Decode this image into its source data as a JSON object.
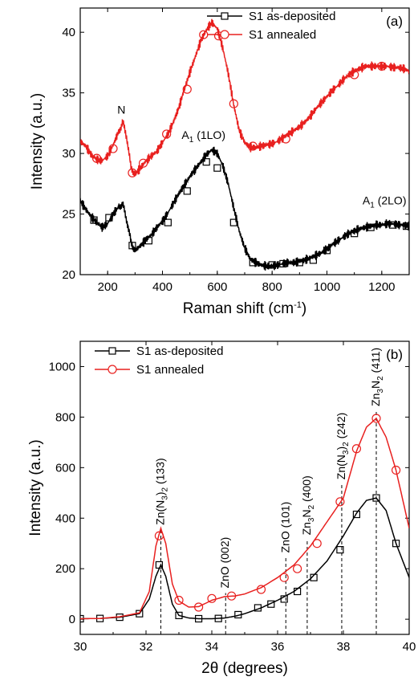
{
  "chart_data": [
    {
      "type": "line",
      "panel_label": "(a)",
      "xlabel_main": "Raman shift (cm",
      "xlabel_sup": "-1",
      "xlabel_tail": ")",
      "ylabel": "Intensity (a.u.)",
      "xlim": [
        100,
        1300
      ],
      "ylim": [
        20,
        42
      ],
      "xticks": [
        200,
        400,
        600,
        800,
        1000,
        1200
      ],
      "yticks": [
        20,
        25,
        30,
        35,
        40
      ],
      "legend_position": "top-center",
      "annotations": [
        {
          "text": "N",
          "x": 250,
          "y": 33.3
        },
        {
          "main": "A",
          "sub": "1",
          "rest": " (1LO)",
          "x": 470,
          "y": 31.2
        },
        {
          "main": "A",
          "sub": "1",
          "rest": " (2LO)",
          "x": 1130,
          "y": 25.8
        }
      ],
      "series": [
        {
          "name": "S1 as-deposited",
          "color": "#000000",
          "marker": "square",
          "x": [
            100,
            120,
            140,
            160,
            180,
            200,
            220,
            240,
            255,
            270,
            285,
            300,
            320,
            340,
            360,
            380,
            400,
            420,
            440,
            460,
            480,
            500,
            520,
            540,
            560,
            580,
            600,
            620,
            640,
            660,
            680,
            700,
            720,
            740,
            760,
            780,
            800,
            820,
            840,
            860,
            880,
            900,
            920,
            940,
            960,
            980,
            1000,
            1020,
            1040,
            1060,
            1080,
            1100,
            1120,
            1140,
            1160,
            1180,
            1200,
            1220,
            1240,
            1260,
            1280,
            1300
          ],
          "y": [
            26.1,
            25.4,
            24.8,
            24.3,
            23.9,
            24.2,
            25.0,
            25.6,
            25.8,
            24.5,
            22.7,
            22.0,
            22.4,
            22.9,
            23.3,
            23.9,
            24.4,
            25.1,
            25.9,
            26.7,
            27.4,
            28.1,
            28.7,
            29.3,
            29.9,
            30.3,
            30.0,
            29.0,
            27.5,
            25.5,
            23.6,
            22.2,
            21.3,
            21.0,
            20.8,
            20.7,
            20.7,
            20.8,
            20.9,
            21.0,
            21.0,
            21.1,
            21.2,
            21.4,
            21.6,
            21.8,
            22.1,
            22.5,
            22.8,
            23.1,
            23.4,
            23.6,
            23.8,
            23.9,
            24.0,
            24.1,
            24.1,
            24.2,
            24.2,
            24.1,
            24.1,
            24.0
          ],
          "markers_x": [
            150,
            205,
            290,
            350,
            420,
            490,
            560,
            600,
            660,
            730,
            800,
            840,
            900,
            950,
            1000,
            1100,
            1160,
            1240,
            1290
          ],
          "markers_y": [
            24.5,
            24.7,
            22.4,
            22.8,
            24.3,
            26.9,
            29.3,
            28.8,
            24.3,
            21.0,
            20.8,
            20.9,
            21.0,
            21.2,
            22.0,
            23.4,
            23.9,
            24.1,
            24.0
          ]
        },
        {
          "name": "S1 annealed",
          "color": "#e8201f",
          "marker": "circle",
          "x": [
            100,
            120,
            140,
            160,
            180,
            200,
            220,
            240,
            255,
            270,
            285,
            300,
            320,
            340,
            360,
            380,
            400,
            420,
            440,
            460,
            480,
            500,
            520,
            540,
            560,
            580,
            600,
            620,
            640,
            660,
            680,
            700,
            720,
            740,
            760,
            780,
            800,
            820,
            840,
            860,
            880,
            900,
            920,
            940,
            960,
            980,
            1000,
            1020,
            1040,
            1060,
            1080,
            1100,
            1120,
            1140,
            1160,
            1180,
            1200,
            1220,
            1240,
            1260,
            1280,
            1300
          ],
          "y": [
            31.0,
            30.6,
            29.9,
            29.5,
            29.4,
            29.8,
            30.7,
            31.8,
            32.6,
            31.3,
            28.8,
            28.3,
            28.8,
            29.4,
            29.8,
            30.2,
            30.9,
            31.6,
            32.6,
            33.8,
            35.3,
            36.7,
            38.0,
            39.3,
            40.2,
            40.8,
            40.3,
            38.7,
            36.6,
            34.0,
            31.9,
            30.9,
            30.5,
            30.5,
            30.6,
            30.7,
            30.8,
            31.0,
            31.3,
            31.6,
            31.9,
            32.2,
            32.6,
            33.1,
            33.7,
            34.2,
            34.7,
            35.2,
            35.6,
            36.1,
            36.5,
            36.8,
            37.0,
            37.2,
            37.2,
            37.2,
            37.2,
            37.2,
            37.1,
            37.1,
            37.0,
            36.8
          ],
          "markers_x": [
            160,
            220,
            290,
            330,
            415,
            490,
            550,
            605,
            660,
            730,
            850,
            1100,
            1200
          ],
          "markers_y": [
            29.6,
            30.4,
            28.4,
            29.2,
            31.6,
            35.3,
            39.8,
            39.7,
            34.1,
            30.6,
            31.2,
            36.5,
            37.2
          ]
        }
      ]
    },
    {
      "type": "line",
      "panel_label": "(b)",
      "xlabel": "2θ (degrees)",
      "ylabel": "Intensity (a.u.)",
      "xlim": [
        30,
        40
      ],
      "ylim": [
        -60,
        1100
      ],
      "xticks": [
        30,
        32,
        34,
        36,
        38,
        40
      ],
      "yticks": [
        0,
        200,
        400,
        600,
        800,
        1000
      ],
      "legend_position": "top-left",
      "reference_lines_x": [
        32.45,
        34.42,
        36.25,
        36.9,
        37.95,
        39.0
      ],
      "annotations": [
        {
          "parts": [
            [
              "Zn(N",
              ""
            ],
            [
              "3",
              "sub"
            ],
            [
              ")",
              ""
            ],
            [
              "2",
              "sub"
            ],
            [
              " (133)",
              ""
            ]
          ],
          "x": 32.45,
          "y": 360
        },
        {
          "parts": [
            [
              "ZnO (002)",
              ""
            ]
          ],
          "x": 34.42,
          "y": 110
        },
        {
          "parts": [
            [
              "ZnO (101)",
              ""
            ]
          ],
          "x": 36.25,
          "y": 250
        },
        {
          "parts": [
            [
              "Zn",
              ""
            ],
            [
              "3",
              "sub"
            ],
            [
              "N",
              ""
            ],
            [
              "2",
              "sub"
            ],
            [
              " (400)",
              ""
            ]
          ],
          "x": 36.9,
          "y": 320
        },
        {
          "parts": [
            [
              "Zn(N",
              ""
            ],
            [
              "3",
              "sub"
            ],
            [
              ")",
              ""
            ],
            [
              "2",
              "sub"
            ],
            [
              " (242)",
              ""
            ]
          ],
          "x": 37.95,
          "y": 540
        },
        {
          "parts": [
            [
              "Zn",
              ""
            ],
            [
              "3",
              "sub"
            ],
            [
              "N",
              ""
            ],
            [
              "2",
              "sub"
            ],
            [
              " (411)",
              ""
            ]
          ],
          "x": 39.0,
          "y": 830
        }
      ],
      "series": [
        {
          "name": "S1 as-deposited",
          "color": "#000000",
          "marker": "square",
          "x": [
            30,
            30.6,
            31.2,
            31.8,
            32.1,
            32.3,
            32.45,
            32.6,
            32.8,
            33.0,
            33.3,
            33.6,
            34.0,
            34.4,
            34.7,
            35.0,
            35.5,
            36.0,
            36.5,
            37.0,
            37.5,
            38.0,
            38.4,
            38.7,
            39.0,
            39.3,
            39.6,
            40.0
          ],
          "y": [
            2,
            3,
            8,
            22,
            80,
            170,
            215,
            170,
            60,
            15,
            5,
            2,
            2,
            5,
            12,
            22,
            45,
            75,
            110,
            160,
            230,
            330,
            420,
            470,
            480,
            430,
            300,
            165
          ],
          "markers_x": [
            30,
            30.6,
            31.2,
            31.8,
            32.4,
            33.0,
            33.6,
            34.2,
            34.8,
            35.4,
            35.8,
            36.2,
            36.6,
            37.1,
            37.9,
            38.4,
            39.0,
            39.6
          ],
          "markers_y": [
            2,
            3,
            8,
            22,
            215,
            15,
            2,
            3,
            18,
            45,
            60,
            80,
            110,
            165,
            275,
            415,
            480,
            300
          ]
        },
        {
          "name": "S1 annealed",
          "color": "#e8201f",
          "marker": "circle",
          "x": [
            30,
            30.6,
            31.2,
            31.8,
            32.1,
            32.3,
            32.45,
            32.6,
            32.8,
            33.0,
            33.3,
            33.6,
            34.0,
            34.4,
            34.7,
            35.0,
            35.5,
            36.0,
            36.5,
            37.0,
            37.5,
            38.0,
            38.4,
            38.7,
            39.0,
            39.3,
            39.6,
            40.0
          ],
          "y": [
            2,
            3,
            10,
            25,
            110,
            290,
            360,
            300,
            140,
            72,
            48,
            50,
            75,
            90,
            92,
            100,
            125,
            165,
            215,
            290,
            385,
            480,
            665,
            760,
            795,
            720,
            590,
            360
          ],
          "markers_x": [
            32.4,
            33.0,
            33.6,
            34.0,
            34.6,
            35.5,
            36.2,
            36.6,
            37.2,
            37.9,
            38.4,
            39.0,
            39.6
          ],
          "markers_y": [
            330,
            75,
            48,
            82,
            92,
            118,
            165,
            200,
            300,
            465,
            675,
            795,
            590
          ]
        }
      ]
    }
  ]
}
